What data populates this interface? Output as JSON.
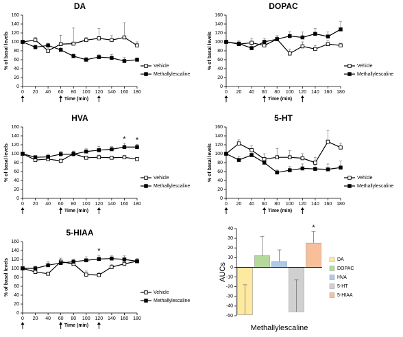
{
  "chart_data": [
    {
      "type": "line",
      "title": "DA",
      "ylabel": "% of basal levels",
      "xlabel": "Time (min)",
      "x": [
        0,
        20,
        40,
        60,
        80,
        100,
        120,
        140,
        160,
        180
      ],
      "xlim": [
        0,
        180
      ],
      "xticks": [
        0,
        20,
        40,
        60,
        80,
        100,
        120,
        140,
        160,
        180
      ],
      "ylim": [
        0,
        160
      ],
      "yticks": [
        0,
        20,
        40,
        60,
        80,
        100,
        120,
        140,
        160
      ],
      "legend": "right",
      "series": [
        {
          "name": "Vehicle",
          "color": "#000000",
          "marker": "open",
          "values": [
            100,
            104,
            80,
            95,
            96,
            104,
            108,
            104,
            110,
            92
          ],
          "errors": [
            0,
            6,
            12,
            20,
            35,
            6,
            22,
            10,
            33,
            8
          ]
        },
        {
          "name": "Methallylescaline",
          "color": "#000000",
          "marker": "filled",
          "values": [
            100,
            88,
            92,
            82,
            68,
            60,
            66,
            64,
            57,
            60
          ],
          "errors": [
            0,
            5,
            5,
            6,
            5,
            5,
            5,
            8,
            8,
            4
          ]
        }
      ],
      "arrows": [
        0,
        60,
        120
      ],
      "annotations": []
    },
    {
      "type": "line",
      "title": "DOPAC",
      "ylabel": "% of basal levels",
      "xlabel": "Time (min)",
      "x": [
        0,
        20,
        40,
        60,
        80,
        100,
        120,
        140,
        160,
        180
      ],
      "xlim": [
        0,
        180
      ],
      "xticks": [
        0,
        20,
        40,
        60,
        80,
        100,
        120,
        140,
        160,
        180
      ],
      "ylim": [
        0,
        160
      ],
      "yticks": [
        0,
        20,
        40,
        60,
        80,
        100,
        120,
        140,
        160
      ],
      "legend": "right",
      "series": [
        {
          "name": "Vehicle",
          "color": "#000000",
          "marker": "open",
          "values": [
            100,
            95,
            98,
            92,
            106,
            74,
            90,
            84,
            95,
            92
          ],
          "errors": [
            0,
            5,
            10,
            8,
            8,
            10,
            10,
            8,
            8,
            5
          ]
        },
        {
          "name": "Methallylescaline",
          "color": "#000000",
          "marker": "filled",
          "values": [
            100,
            96,
            86,
            100,
            106,
            113,
            110,
            118,
            112,
            128
          ],
          "errors": [
            0,
            6,
            8,
            8,
            5,
            10,
            12,
            12,
            10,
            18
          ]
        }
      ],
      "arrows": [
        0,
        60,
        120
      ],
      "annotations": []
    },
    {
      "type": "line",
      "title": "HVA",
      "ylabel": "% of basal levels",
      "xlabel": "Time (min)",
      "x": [
        0,
        20,
        40,
        60,
        80,
        100,
        120,
        140,
        160,
        180
      ],
      "xlim": [
        0,
        180
      ],
      "xticks": [
        0,
        20,
        40,
        60,
        80,
        100,
        120,
        140,
        160,
        180
      ],
      "ylim": [
        0,
        160
      ],
      "yticks": [
        0,
        20,
        40,
        60,
        80,
        100,
        120,
        140,
        160
      ],
      "legend": "right",
      "series": [
        {
          "name": "Vehicle",
          "color": "#000000",
          "marker": "open",
          "values": [
            100,
            86,
            88,
            84,
            100,
            91,
            92,
            91,
            92,
            88
          ],
          "errors": [
            0,
            4,
            4,
            4,
            6,
            4,
            5,
            4,
            4,
            3
          ]
        },
        {
          "name": "Methallylescaline",
          "color": "#000000",
          "marker": "filled",
          "values": [
            100,
            92,
            93,
            99,
            99,
            105,
            108,
            110,
            115,
            115
          ],
          "errors": [
            0,
            4,
            6,
            6,
            6,
            6,
            8,
            6,
            8,
            6
          ]
        }
      ],
      "arrows": [
        0,
        60,
        120
      ],
      "annotations": [
        {
          "x": 160,
          "text": "*"
        },
        {
          "x": 180,
          "text": "*"
        }
      ]
    },
    {
      "type": "line",
      "title": "5-HT",
      "ylabel": "% of basal levels",
      "xlabel": "Time (min)",
      "x": [
        0,
        20,
        40,
        60,
        80,
        100,
        120,
        140,
        160,
        180
      ],
      "xlim": [
        0,
        180
      ],
      "xticks": [
        0,
        20,
        40,
        60,
        80,
        100,
        120,
        140,
        160,
        180
      ],
      "ylim": [
        0,
        160
      ],
      "yticks": [
        0,
        20,
        40,
        60,
        80,
        100,
        120,
        140,
        160
      ],
      "legend": "right",
      "series": [
        {
          "name": "Vehicle",
          "color": "#000000",
          "marker": "open",
          "values": [
            100,
            123,
            108,
            88,
            92,
            92,
            90,
            80,
            127,
            114
          ],
          "errors": [
            0,
            8,
            10,
            12,
            20,
            15,
            10,
            12,
            25,
            10
          ]
        },
        {
          "name": "Methallylescaline",
          "color": "#000000",
          "marker": "filled",
          "values": [
            100,
            86,
            97,
            80,
            58,
            63,
            67,
            66,
            65,
            69
          ],
          "errors": [
            0,
            8,
            12,
            10,
            6,
            8,
            10,
            10,
            12,
            15
          ]
        }
      ],
      "arrows": [
        0,
        60,
        120
      ],
      "annotations": []
    },
    {
      "type": "line",
      "title": "5-HIAA",
      "ylabel": "% of basal levels",
      "xlabel": "Time (min)",
      "x": [
        0,
        20,
        40,
        60,
        80,
        100,
        120,
        140,
        160,
        180
      ],
      "xlim": [
        0,
        180
      ],
      "xticks": [
        0,
        20,
        40,
        60,
        80,
        100,
        120,
        140,
        160,
        180
      ],
      "ylim": [
        0,
        160
      ],
      "yticks": [
        0,
        20,
        40,
        60,
        80,
        100,
        120,
        140,
        160
      ],
      "legend": "right",
      "series": [
        {
          "name": "Vehicle",
          "color": "#000000",
          "marker": "open",
          "values": [
            100,
            92,
            88,
            115,
            110,
            86,
            85,
            103,
            110,
            116
          ],
          "errors": [
            0,
            4,
            4,
            8,
            6,
            8,
            6,
            6,
            6,
            4
          ]
        },
        {
          "name": "Methallylescaline",
          "color": "#000000",
          "marker": "filled",
          "values": [
            100,
            100,
            107,
            112,
            115,
            118,
            121,
            122,
            120,
            116
          ],
          "errors": [
            0,
            5,
            8,
            6,
            6,
            8,
            8,
            6,
            8,
            6
          ]
        }
      ],
      "arrows": [
        0,
        60,
        120
      ],
      "annotations": [
        {
          "x": 120,
          "text": "*"
        }
      ]
    },
    {
      "type": "bar",
      "ylabel": "AUCs",
      "xlabel": "Methallylescaline",
      "categories": [
        "DA",
        "DOPAC",
        "HVA",
        "5-HT",
        "5-HIAA"
      ],
      "values": [
        -49,
        12,
        6,
        -46,
        25
      ],
      "errors": [
        31,
        20,
        12,
        33,
        12
      ],
      "colors": [
        "#fde9a0",
        "#b5d99c",
        "#b0c8e8",
        "#d0d0d0",
        "#f8c09a"
      ],
      "ylim": [
        -50,
        40
      ],
      "yticks": [
        -50,
        -40,
        -30,
        -20,
        -10,
        0,
        10,
        20,
        30,
        40
      ],
      "legend": "right",
      "annotations": [
        {
          "category": "5-HIAA",
          "text": "*"
        }
      ]
    }
  ]
}
